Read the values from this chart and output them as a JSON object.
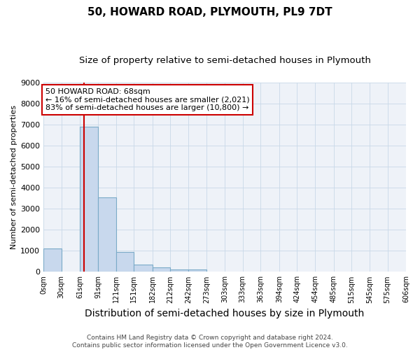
{
  "title": "50, HOWARD ROAD, PLYMOUTH, PL9 7DT",
  "subtitle": "Size of property relative to semi-detached houses in Plymouth",
  "xlabel": "Distribution of semi-detached houses by size in Plymouth",
  "ylabel": "Number of semi-detached properties",
  "bar_color": "#c8d8ed",
  "bar_edge_color": "#7aaac8",
  "bar_values": [
    1100,
    0,
    6900,
    3550,
    950,
    350,
    200,
    100,
    100,
    0,
    0,
    0,
    0,
    0,
    0,
    0,
    0,
    0,
    0,
    0
  ],
  "bin_edges": [
    0,
    30,
    61,
    91,
    121,
    151,
    182,
    212,
    242,
    273,
    303,
    333,
    363,
    394,
    424,
    454,
    485,
    515,
    545,
    575,
    606
  ],
  "x_labels": [
    "0sqm",
    "30sqm",
    "61sqm",
    "91sqm",
    "121sqm",
    "151sqm",
    "182sqm",
    "212sqm",
    "242sqm",
    "273sqm",
    "303sqm",
    "333sqm",
    "363sqm",
    "394sqm",
    "424sqm",
    "454sqm",
    "485sqm",
    "515sqm",
    "545sqm",
    "575sqm",
    "606sqm"
  ],
  "ylim": [
    0,
    9000
  ],
  "yticks": [
    0,
    1000,
    2000,
    3000,
    4000,
    5000,
    6000,
    7000,
    8000,
    9000
  ],
  "property_size": 68,
  "red_line_color": "#cc0000",
  "annotation_line1": "50 HOWARD ROAD: 68sqm",
  "annotation_line2": "← 16% of semi-detached houses are smaller (2,021)",
  "annotation_line3": "83% of semi-detached houses are larger (10,800) →",
  "annotation_box_color": "#ffffff",
  "annotation_box_edge": "#cc0000",
  "footer_text": "Contains HM Land Registry data © Crown copyright and database right 2024.\nContains public sector information licensed under the Open Government Licence v3.0.",
  "grid_color": "#c8d8e8",
  "background_color": "#ffffff",
  "plot_bg_color": "#eef2f8",
  "title_fontsize": 11,
  "subtitle_fontsize": 9.5,
  "annotation_fontsize": 8,
  "ylabel_fontsize": 8,
  "xlabel_fontsize": 10
}
